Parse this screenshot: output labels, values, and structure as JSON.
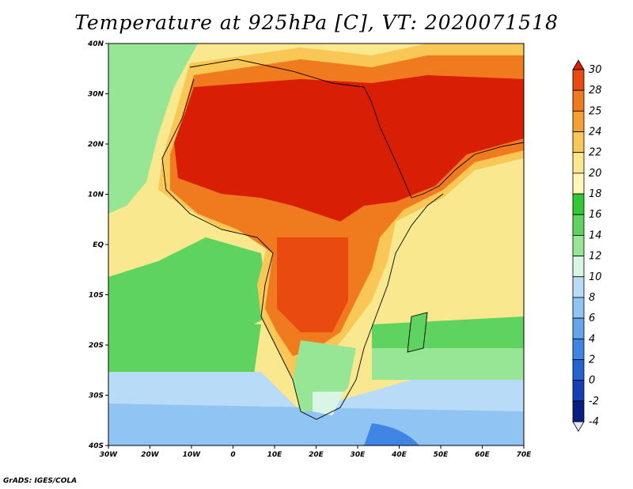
{
  "title": "Temperature at 925hPa [C], VT: 2020071518",
  "credit": "GrADS: IGES/COLA",
  "map": {
    "lon_labels": [
      "30W",
      "20W",
      "10W",
      "0",
      "10E",
      "20E",
      "30E",
      "40E",
      "50E",
      "60E",
      "70E"
    ],
    "lat_labels": [
      "40N",
      "30N",
      "20N",
      "10N",
      "EQ",
      "10S",
      "20S",
      "30S",
      "40S"
    ]
  },
  "colorbar": {
    "labels": [
      "30",
      "28",
      "25",
      "24",
      "22",
      "20",
      "18",
      "16",
      "14",
      "12",
      "10",
      "8",
      "6",
      "4",
      "2",
      "0",
      "-2",
      "-4"
    ],
    "colors": [
      "#d81e05",
      "#e84a10",
      "#f07a1e",
      "#f5a033",
      "#f8c756",
      "#fae88e",
      "#fff6b8",
      "#32c832",
      "#5fd35f",
      "#96e696",
      "#d9f5e6",
      "#b8dcf8",
      "#8fc4f3",
      "#64a6ec",
      "#3f86e4",
      "#2463d2",
      "#1440b4",
      "#0a1e82",
      "#e6e6fa"
    ]
  },
  "palette": {
    "hot": "#d81e05",
    "warm": "#f07a1e",
    "mild": "#f8c756",
    "pale": "#fae88e",
    "green": "#5fd35f",
    "lightgreen": "#96e696",
    "aqua": "#d9f5e6",
    "lightblue": "#b8dcf8",
    "blue": "#8fc4f3",
    "deepblue": "#3f86e4"
  }
}
